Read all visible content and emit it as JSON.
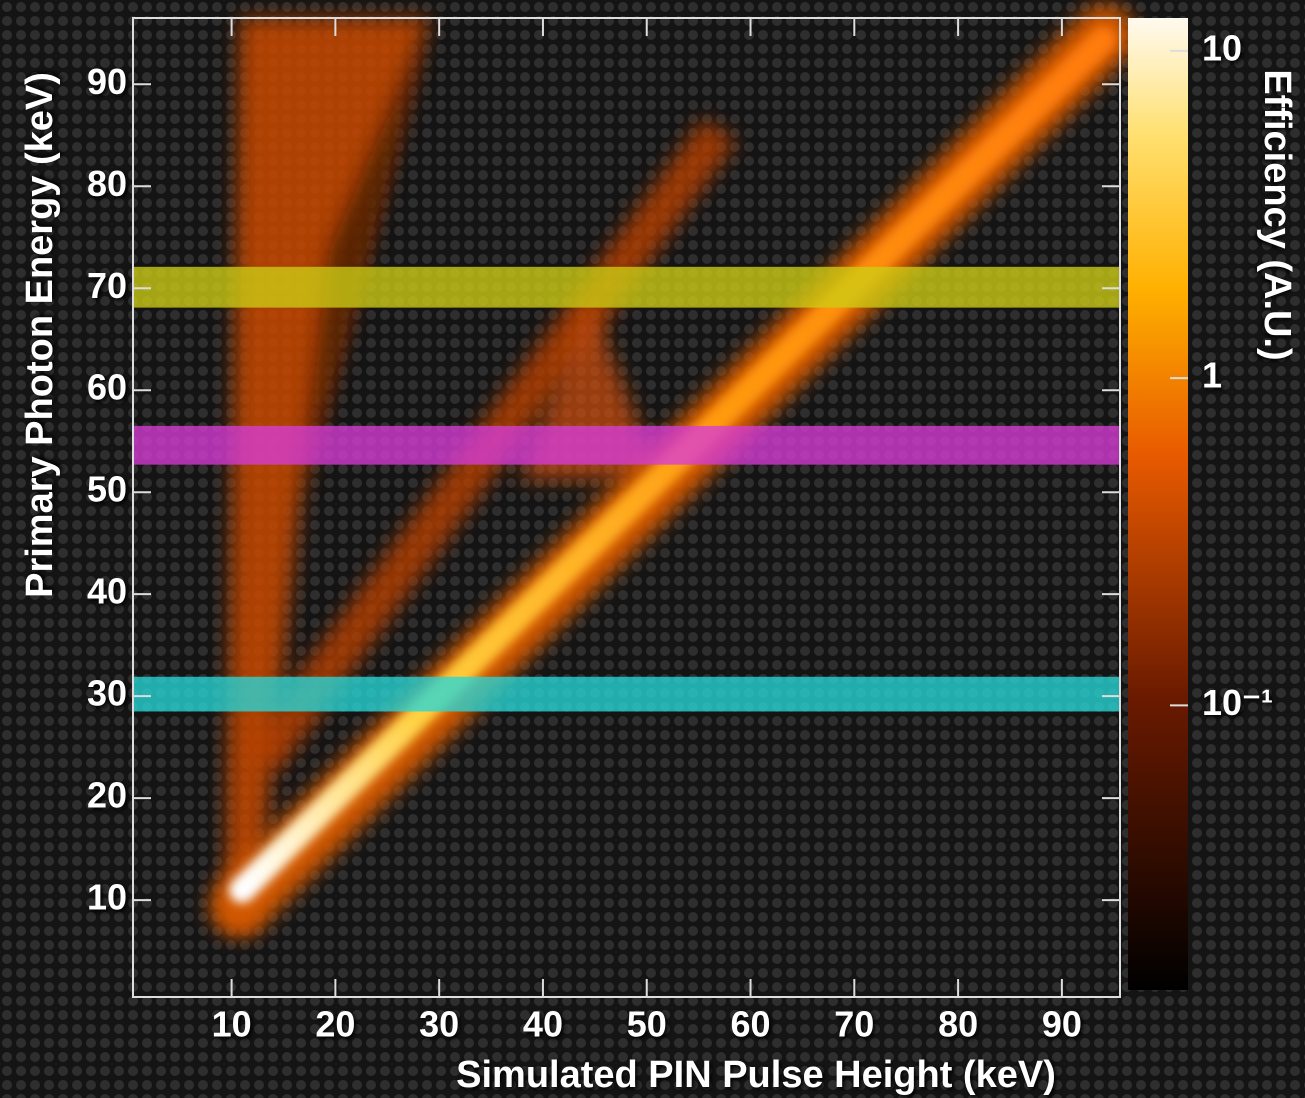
{
  "chart_data": {
    "type": "heatmap",
    "x_label": "Simulated PIN Pulse Height (keV)",
    "y_label": "Primary Photon Energy (keV)",
    "xlim": [
      0.5,
      95.6
    ],
    "xticks": [
      10,
      20,
      30,
      40,
      50,
      60,
      70,
      80,
      90
    ],
    "ylim": [
      0.5,
      96.5
    ],
    "yticks": [
      10,
      20,
      30,
      40,
      50,
      60,
      70,
      80,
      90
    ],
    "colorbar": {
      "title": "Efficiency (A.U.)",
      "log": true,
      "lim": [
        0.0135,
        12.6
      ],
      "ticks": [
        10,
        1,
        {
          "value": 0.1,
          "label": "10⁻¹"
        }
      ]
    },
    "bands": [
      {
        "ylim": [
          28.5,
          31.9
        ],
        "color": "rgba(40,215,215,0.78)"
      },
      {
        "ylim": [
          52.7,
          56.5
        ],
        "color": "rgba(215,60,215,0.78)"
      },
      {
        "ylim": [
          68.1,
          72.1
        ],
        "color": "rgba(205,205,20,0.78)"
      }
    ]
  }
}
